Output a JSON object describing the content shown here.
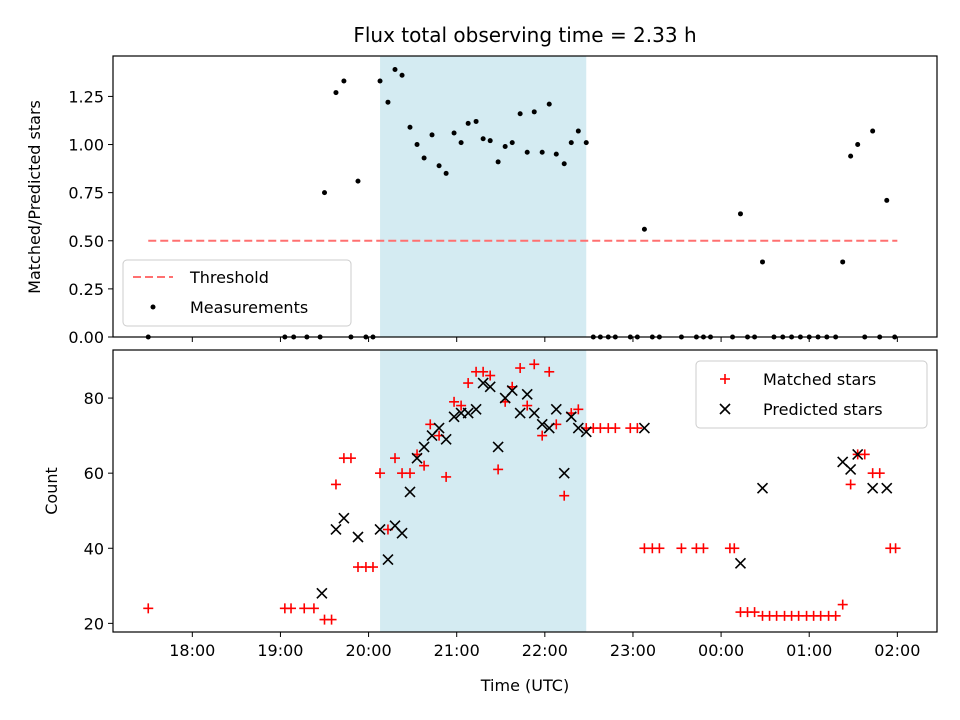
{
  "chart_data": {
    "type": "scatter",
    "title": "Flux total observing time = 2.33 h",
    "xlabel": "Time (UTC)",
    "x_unit": "hours since 00:00 UTC of the first night (values above 24 are after midnight)",
    "xlim": [
      17.1,
      26.45
    ],
    "x_ticks": [
      {
        "value": 18,
        "label": "18:00"
      },
      {
        "value": 19,
        "label": "19:00"
      },
      {
        "value": 20,
        "label": "20:00"
      },
      {
        "value": 21,
        "label": "21:00"
      },
      {
        "value": 22,
        "label": "22:00"
      },
      {
        "value": 23,
        "label": "23:00"
      },
      {
        "value": 24,
        "label": "00:00"
      },
      {
        "value": 25,
        "label": "01:00"
      },
      {
        "value": 26,
        "label": "02:00"
      }
    ],
    "shaded_interval": [
      20.13,
      22.47
    ],
    "shade_color": "#add8e6",
    "top_panel": {
      "ylabel": "Matched/Predicted stars",
      "ylim": [
        0,
        1.46
      ],
      "y_ticks": [
        "0.00",
        "0.25",
        "0.50",
        "0.75",
        "1.00",
        "1.25"
      ],
      "legend": {
        "threshold": "Threshold",
        "measurements": "Measurements"
      },
      "threshold": {
        "value": 0.5,
        "x_range": [
          17.5,
          26.0
        ],
        "color": "#ff7070"
      },
      "measurements": [
        [
          17.5,
          0
        ],
        [
          19.05,
          0
        ],
        [
          19.15,
          0
        ],
        [
          19.3,
          0
        ],
        [
          19.45,
          0
        ],
        [
          19.5,
          0.75
        ],
        [
          19.63,
          1.27
        ],
        [
          19.72,
          1.33
        ],
        [
          19.8,
          0
        ],
        [
          19.88,
          0.81
        ],
        [
          19.97,
          0
        ],
        [
          20.05,
          0
        ],
        [
          20.13,
          1.33
        ],
        [
          20.22,
          1.22
        ],
        [
          20.3,
          1.39
        ],
        [
          20.38,
          1.36
        ],
        [
          20.47,
          1.09
        ],
        [
          20.55,
          1.0
        ],
        [
          20.63,
          0.93
        ],
        [
          20.72,
          1.05
        ],
        [
          20.8,
          0.89
        ],
        [
          20.88,
          0.85
        ],
        [
          20.97,
          1.06
        ],
        [
          21.05,
          1.01
        ],
        [
          21.13,
          1.11
        ],
        [
          21.22,
          1.12
        ],
        [
          21.3,
          1.03
        ],
        [
          21.38,
          1.02
        ],
        [
          21.47,
          0.91
        ],
        [
          21.55,
          0.99
        ],
        [
          21.63,
          1.01
        ],
        [
          21.72,
          1.16
        ],
        [
          21.88,
          1.17
        ],
        [
          21.8,
          0.96
        ],
        [
          21.97,
          0.96
        ],
        [
          22.05,
          1.21
        ],
        [
          22.13,
          0.95
        ],
        [
          22.22,
          0.9
        ],
        [
          22.3,
          1.01
        ],
        [
          22.38,
          1.07
        ],
        [
          22.47,
          1.01
        ],
        [
          22.55,
          0
        ],
        [
          22.63,
          0
        ],
        [
          22.72,
          0
        ],
        [
          22.8,
          0
        ],
        [
          22.97,
          0
        ],
        [
          23.05,
          0
        ],
        [
          23.13,
          0.56
        ],
        [
          23.22,
          0
        ],
        [
          23.3,
          0
        ],
        [
          23.55,
          0
        ],
        [
          23.72,
          0
        ],
        [
          23.8,
          0
        ],
        [
          23.88,
          0
        ],
        [
          24.13,
          0
        ],
        [
          24.22,
          0.64
        ],
        [
          24.3,
          0
        ],
        [
          24.38,
          0
        ],
        [
          24.47,
          0.39
        ],
        [
          24.6,
          0
        ],
        [
          24.7,
          0
        ],
        [
          24.8,
          0
        ],
        [
          24.9,
          0
        ],
        [
          25.0,
          0
        ],
        [
          25.1,
          0
        ],
        [
          25.2,
          0
        ],
        [
          25.3,
          0
        ],
        [
          25.38,
          0.39
        ],
        [
          25.47,
          0.94
        ],
        [
          25.55,
          1.0
        ],
        [
          25.63,
          0
        ],
        [
          25.72,
          1.07
        ],
        [
          25.8,
          0
        ],
        [
          25.88,
          0.71
        ],
        [
          25.97,
          0
        ]
      ]
    },
    "bottom_panel": {
      "ylabel": "Count",
      "ylim": [
        17.7,
        92.8
      ],
      "y_ticks": [
        "20",
        "40",
        "60",
        "80"
      ],
      "legend": {
        "matched": "Matched stars",
        "predicted": "Predicted stars"
      },
      "matched": [
        [
          17.5,
          24
        ],
        [
          19.05,
          24
        ],
        [
          19.12,
          24
        ],
        [
          19.27,
          24
        ],
        [
          19.38,
          24
        ],
        [
          19.5,
          21
        ],
        [
          19.58,
          21
        ],
        [
          19.63,
          57
        ],
        [
          19.72,
          64
        ],
        [
          19.8,
          64
        ],
        [
          19.88,
          35
        ],
        [
          19.97,
          35
        ],
        [
          20.05,
          35
        ],
        [
          20.13,
          60
        ],
        [
          20.22,
          45
        ],
        [
          20.3,
          64
        ],
        [
          20.38,
          60
        ],
        [
          20.47,
          60
        ],
        [
          20.55,
          65
        ],
        [
          20.63,
          62
        ],
        [
          20.7,
          73
        ],
        [
          20.8,
          70
        ],
        [
          20.88,
          59
        ],
        [
          20.97,
          79
        ],
        [
          21.05,
          78
        ],
        [
          21.13,
          84
        ],
        [
          21.22,
          87
        ],
        [
          21.3,
          87
        ],
        [
          21.38,
          86
        ],
        [
          21.47,
          61
        ],
        [
          21.55,
          79
        ],
        [
          21.63,
          83
        ],
        [
          21.72,
          88
        ],
        [
          21.8,
          78
        ],
        [
          21.88,
          89
        ],
        [
          21.97,
          70
        ],
        [
          22.05,
          87
        ],
        [
          22.13,
          73
        ],
        [
          22.22,
          54
        ],
        [
          22.3,
          76
        ],
        [
          22.38,
          77
        ],
        [
          22.47,
          72
        ],
        [
          22.55,
          72
        ],
        [
          22.63,
          72
        ],
        [
          22.72,
          72
        ],
        [
          22.8,
          72
        ],
        [
          22.97,
          72
        ],
        [
          23.05,
          72
        ],
        [
          23.13,
          40
        ],
        [
          23.22,
          40
        ],
        [
          23.3,
          40
        ],
        [
          23.55,
          40
        ],
        [
          23.72,
          40
        ],
        [
          23.8,
          40
        ],
        [
          24.1,
          40
        ],
        [
          24.15,
          40
        ],
        [
          24.22,
          23
        ],
        [
          24.3,
          23
        ],
        [
          24.38,
          23
        ],
        [
          24.47,
          22
        ],
        [
          24.55,
          22
        ],
        [
          24.63,
          22
        ],
        [
          24.72,
          22
        ],
        [
          24.8,
          22
        ],
        [
          24.88,
          22
        ],
        [
          24.97,
          22
        ],
        [
          25.05,
          22
        ],
        [
          25.13,
          22
        ],
        [
          25.22,
          22
        ],
        [
          25.3,
          22
        ],
        [
          25.38,
          25
        ],
        [
          25.47,
          57
        ],
        [
          25.55,
          65
        ],
        [
          25.63,
          65
        ],
        [
          25.72,
          60
        ],
        [
          25.8,
          60
        ],
        [
          25.92,
          40
        ],
        [
          25.98,
          40
        ]
      ],
      "predicted": [
        [
          19.47,
          28
        ],
        [
          19.63,
          45
        ],
        [
          19.72,
          48
        ],
        [
          19.88,
          43
        ],
        [
          20.13,
          45
        ],
        [
          20.22,
          37
        ],
        [
          20.3,
          46
        ],
        [
          20.38,
          44
        ],
        [
          20.47,
          55
        ],
        [
          20.55,
          64
        ],
        [
          20.63,
          67
        ],
        [
          20.72,
          70
        ],
        [
          20.8,
          72
        ],
        [
          20.88,
          69
        ],
        [
          20.97,
          75
        ],
        [
          21.05,
          76
        ],
        [
          21.13,
          76
        ],
        [
          21.22,
          77
        ],
        [
          21.3,
          84
        ],
        [
          21.38,
          83
        ],
        [
          21.47,
          67
        ],
        [
          21.55,
          80
        ],
        [
          21.63,
          82
        ],
        [
          21.72,
          76
        ],
        [
          21.8,
          81
        ],
        [
          21.88,
          76
        ],
        [
          21.97,
          73
        ],
        [
          22.05,
          72
        ],
        [
          22.13,
          77
        ],
        [
          22.22,
          60
        ],
        [
          22.3,
          75
        ],
        [
          22.38,
          72
        ],
        [
          22.47,
          71
        ],
        [
          23.13,
          72
        ],
        [
          24.22,
          36
        ],
        [
          24.47,
          56
        ],
        [
          25.38,
          63
        ],
        [
          25.47,
          61
        ],
        [
          25.55,
          65
        ],
        [
          25.72,
          56
        ],
        [
          25.88,
          56
        ]
      ]
    }
  }
}
